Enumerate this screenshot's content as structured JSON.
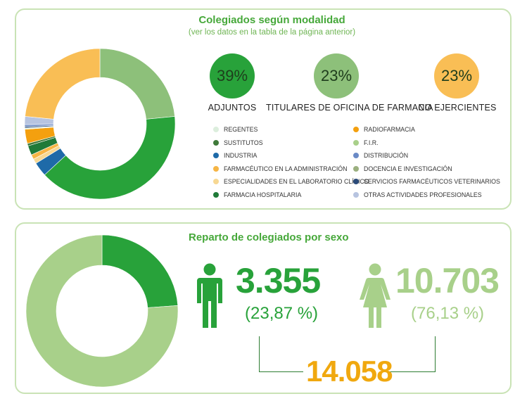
{
  "chart_data": [
    {
      "type": "pie",
      "title": "Colegiados según modalidad",
      "subtitle": "(ver los datos en la tabla de la página anterior)",
      "slices": [
        {
          "name": "Titulares de oficina de farmacia",
          "value": 23,
          "color": "#8dc07a"
        },
        {
          "name": "Adjuntos",
          "value": 39,
          "color": "#28a23a"
        },
        {
          "name": "Industria",
          "value": 3,
          "color": "#1e6aa8"
        },
        {
          "name": "Especialidades en el laboratorio clínico",
          "value": 1,
          "color": "#f7d893"
        },
        {
          "name": "Farmacéutico en la administración",
          "value": 1,
          "color": "#f6b545"
        },
        {
          "name": "Farmacia hospitalaria",
          "value": 2,
          "color": "#1f7a38"
        },
        {
          "name": "Sustitutos",
          "value": 0.5,
          "color": "#3f7a3a"
        },
        {
          "name": "Radiofarmacia",
          "value": 3,
          "color": "#f4a00f"
        },
        {
          "name": "Regentes",
          "value": 0.3,
          "color": "#dceedd"
        },
        {
          "name": "Servicios farmacéuticos veterinarios",
          "value": 0.3,
          "color": "#2a4a78"
        },
        {
          "name": "Distribución",
          "value": 0.4,
          "color": "#6a8ac6"
        },
        {
          "name": "Otras actividades profesionales",
          "value": 1.7,
          "color": "#b7c4e0"
        },
        {
          "name": "No ejercientes",
          "value": 23,
          "color": "#f9be55"
        }
      ],
      "highlights": [
        {
          "value": "39%",
          "label": "ADJUNTOS",
          "color": "#28a23a"
        },
        {
          "value": "23%",
          "label": "TITULARES DE OFICINA DE FARMACIA",
          "color": "#8dc07a"
        },
        {
          "value": "23%",
          "label": "NO EJERCIENTES",
          "color": "#f9be55"
        }
      ],
      "legend": [
        {
          "label": "REGENTES",
          "color": "#dceedd"
        },
        {
          "label": "RADIOFARMACIA",
          "color": "#f4a00f"
        },
        {
          "label": "SUSTITUTOS",
          "color": "#3f7a3a"
        },
        {
          "label": "F.I.R.",
          "color": "#a9d08a"
        },
        {
          "label": "INDUSTRIA",
          "color": "#1e6aa8"
        },
        {
          "label": "DISTRIBUCIÓN",
          "color": "#6a8ac6"
        },
        {
          "label": "FARMACÉUTICO EN LA ADMINISTRACIÓN",
          "color": "#f6b545"
        },
        {
          "label": "DOCENCIA E INVESTIGACIÓN",
          "color": "#9bb07f"
        },
        {
          "label": "ESPECIALIDADES EN EL LABORATORIO CLÍNICO",
          "color": "#f7d893"
        },
        {
          "label": "SERVICIOS FARMACÉUTICOS VETERINARIOS",
          "color": "#2a4a78"
        },
        {
          "label": "FARMACIA HOSPITALARIA",
          "color": "#1f7a38"
        },
        {
          "label": "OTRAS ACTIVIDADES PROFESIONALES",
          "color": "#b7c4e0"
        }
      ]
    },
    {
      "type": "pie",
      "title": "Reparto de colegiados por sexo",
      "slices": [
        {
          "name": "Hombres",
          "value": 3355,
          "percent": 23.87,
          "color": "#28a23a"
        },
        {
          "name": "Mujeres",
          "value": 10703,
          "percent": 76.13,
          "color": "#a8d08a"
        }
      ],
      "male": {
        "count": "3.355",
        "percent": "(23,87 %)",
        "color": "#28a23a"
      },
      "female": {
        "count": "10.703",
        "percent": "(76,13 %)",
        "color": "#a8d08a"
      },
      "total": {
        "value": "14.058",
        "color": "#f0a80f"
      }
    }
  ]
}
